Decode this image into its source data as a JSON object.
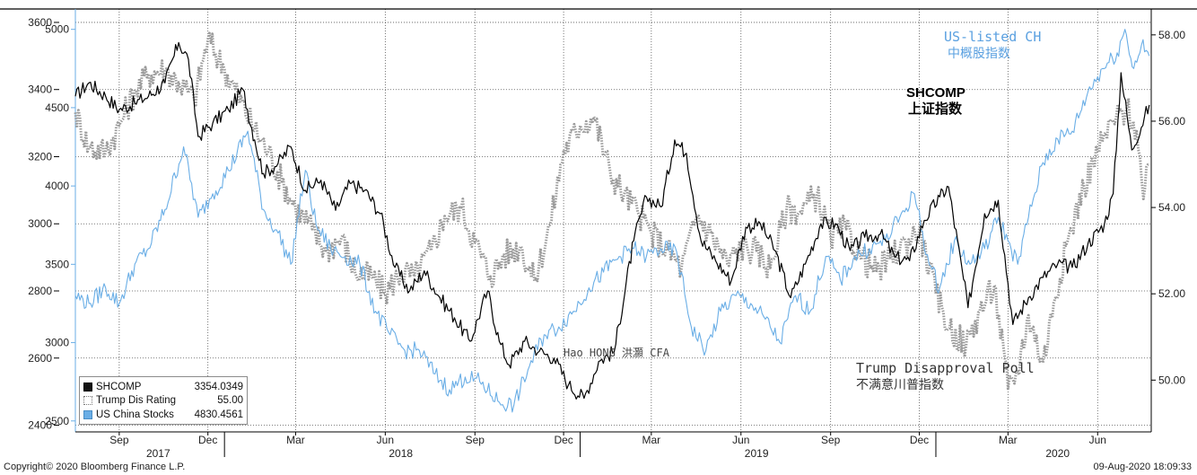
{
  "chart_data": {
    "type": "line",
    "x_axis": {
      "month_ticks": [
        "Sep",
        "Dec",
        "Mar",
        "Jun",
        "Sep",
        "Dec",
        "Mar",
        "Jun",
        "Sep",
        "Dec",
        "Mar",
        "Jun"
      ],
      "years": [
        "2017",
        "2018",
        "2019",
        "2020"
      ],
      "range": [
        "2017-08-01",
        "2020-08-09"
      ]
    },
    "left_axis_outer": {
      "ticks": [
        2400,
        2600,
        2800,
        3000,
        3200,
        3400,
        3600
      ],
      "range": [
        2380,
        3640
      ]
    },
    "left_axis_inner": {
      "ticks": [
        2500,
        3000,
        3500,
        4000,
        4500,
        5000
      ],
      "range": [
        2430,
        5130
      ]
    },
    "right_axis": {
      "ticks": [
        "50.00",
        "52.00",
        "54.00",
        "56.00",
        "58.00"
      ],
      "range": [
        48.8,
        58.6
      ]
    },
    "grid": true,
    "series": [
      {
        "name": "SHCOMP",
        "color": "#000000",
        "style": "solid",
        "last_value": "3354.0349",
        "points": [
          [
            "2017-08-01",
            3380
          ],
          [
            "2017-08-15",
            3420
          ],
          [
            "2017-09-01",
            3380
          ],
          [
            "2017-09-15",
            3340
          ],
          [
            "2017-10-01",
            3360
          ],
          [
            "2017-10-15",
            3380
          ],
          [
            "2017-11-01",
            3420
          ],
          [
            "2017-11-15",
            3540
          ],
          [
            "2017-11-25",
            3490
          ],
          [
            "2017-12-05",
            3260
          ],
          [
            "2017-12-20",
            3300
          ],
          [
            "2018-01-05",
            3340
          ],
          [
            "2018-01-20",
            3400
          ],
          [
            "2018-02-01",
            3250
          ],
          [
            "2018-02-10",
            3150
          ],
          [
            "2018-02-25",
            3180
          ],
          [
            "2018-03-10",
            3230
          ],
          [
            "2018-03-25",
            3100
          ],
          [
            "2018-04-10",
            3130
          ],
          [
            "2018-04-25",
            3040
          ],
          [
            "2018-05-10",
            3120
          ],
          [
            "2018-05-25",
            3100
          ],
          [
            "2018-06-10",
            3030
          ],
          [
            "2018-06-25",
            2870
          ],
          [
            "2018-07-10",
            2800
          ],
          [
            "2018-07-25",
            2860
          ],
          [
            "2018-08-10",
            2780
          ],
          [
            "2018-08-25",
            2720
          ],
          [
            "2018-09-10",
            2650
          ],
          [
            "2018-09-28",
            2800
          ],
          [
            "2018-10-10",
            2650
          ],
          [
            "2018-10-20",
            2580
          ],
          [
            "2018-11-05",
            2650
          ],
          [
            "2018-11-20",
            2620
          ],
          [
            "2018-12-05",
            2600
          ],
          [
            "2018-12-20",
            2520
          ],
          [
            "2019-01-05",
            2480
          ],
          [
            "2019-01-20",
            2590
          ],
          [
            "2019-02-05",
            2620
          ],
          [
            "2019-02-25",
            2950
          ],
          [
            "2019-03-10",
            3080
          ],
          [
            "2019-03-25",
            3050
          ],
          [
            "2019-04-08",
            3250
          ],
          [
            "2019-04-20",
            3210
          ],
          [
            "2019-05-05",
            2950
          ],
          [
            "2019-05-20",
            2890
          ],
          [
            "2019-06-05",
            2830
          ],
          [
            "2019-06-20",
            2990
          ],
          [
            "2019-07-05",
            3000
          ],
          [
            "2019-07-20",
            2920
          ],
          [
            "2019-08-05",
            2780
          ],
          [
            "2019-08-20",
            2880
          ],
          [
            "2019-09-05",
            3000
          ],
          [
            "2019-09-20",
            3000
          ],
          [
            "2019-10-05",
            2920
          ],
          [
            "2019-10-20",
            2960
          ],
          [
            "2019-11-05",
            2970
          ],
          [
            "2019-11-20",
            2900
          ],
          [
            "2019-12-05",
            2890
          ],
          [
            "2019-12-20",
            3010
          ],
          [
            "2020-01-05",
            3080
          ],
          [
            "2020-01-14",
            3110
          ],
          [
            "2020-02-03",
            2750
          ],
          [
            "2020-02-20",
            3030
          ],
          [
            "2020-03-05",
            3070
          ],
          [
            "2020-03-20",
            2700
          ],
          [
            "2020-04-05",
            2780
          ],
          [
            "2020-04-20",
            2840
          ],
          [
            "2020-05-05",
            2880
          ],
          [
            "2020-05-20",
            2870
          ],
          [
            "2020-06-05",
            2940
          ],
          [
            "2020-06-22",
            3000
          ],
          [
            "2020-07-01",
            3090
          ],
          [
            "2020-07-09",
            3450
          ],
          [
            "2020-07-20",
            3220
          ],
          [
            "2020-08-07",
            3354
          ]
        ]
      },
      {
        "name": "Trump Dis Rating",
        "color": "#9a9a9a",
        "style": "dotted",
        "last_value": "55.00",
        "points": [
          [
            "2017-08-01",
            56.2
          ],
          [
            "2017-08-15",
            55.4
          ],
          [
            "2017-09-01",
            55.3
          ],
          [
            "2017-09-15",
            55.9
          ],
          [
            "2017-10-01",
            56.7
          ],
          [
            "2017-10-15",
            57.1
          ],
          [
            "2017-11-01",
            57.2
          ],
          [
            "2017-11-15",
            56.9
          ],
          [
            "2017-12-01",
            56.5
          ],
          [
            "2017-12-15",
            57.9
          ],
          [
            "2018-01-01",
            57.2
          ],
          [
            "2018-01-15",
            56.6
          ],
          [
            "2018-02-01",
            55.8
          ],
          [
            "2018-02-15",
            55.3
          ],
          [
            "2018-03-01",
            54.6
          ],
          [
            "2018-03-15",
            54.0
          ],
          [
            "2018-04-01",
            53.5
          ],
          [
            "2018-04-15",
            53.0
          ],
          [
            "2018-05-01",
            53.3
          ],
          [
            "2018-05-15",
            52.5
          ],
          [
            "2018-06-01",
            52.4
          ],
          [
            "2018-06-15",
            52.0
          ],
          [
            "2018-07-01",
            52.5
          ],
          [
            "2018-07-15",
            52.4
          ],
          [
            "2018-08-01",
            53.0
          ],
          [
            "2018-08-15",
            53.8
          ],
          [
            "2018-09-01",
            54.0
          ],
          [
            "2018-09-15",
            53.2
          ],
          [
            "2018-10-01",
            52.4
          ],
          [
            "2018-10-15",
            52.9
          ],
          [
            "2018-11-01",
            53.1
          ],
          [
            "2018-11-15",
            52.3
          ],
          [
            "2018-12-01",
            53.6
          ],
          [
            "2018-12-15",
            55.3
          ],
          [
            "2019-01-01",
            55.9
          ],
          [
            "2019-01-15",
            56.1
          ],
          [
            "2019-02-01",
            54.8
          ],
          [
            "2019-02-15",
            54.3
          ],
          [
            "2019-03-01",
            53.9
          ],
          [
            "2019-03-15",
            53.4
          ],
          [
            "2019-04-01",
            53.0
          ],
          [
            "2019-04-15",
            52.6
          ],
          [
            "2019-05-01",
            53.8
          ],
          [
            "2019-05-15",
            53.4
          ],
          [
            "2019-06-01",
            52.7
          ],
          [
            "2019-06-15",
            53.1
          ],
          [
            "2019-07-01",
            53.0
          ],
          [
            "2019-07-15",
            52.6
          ],
          [
            "2019-08-01",
            54.0
          ],
          [
            "2019-08-15",
            53.9
          ],
          [
            "2019-09-01",
            54.3
          ],
          [
            "2019-09-15",
            53.3
          ],
          [
            "2019-10-01",
            53.5
          ],
          [
            "2019-10-15",
            52.9
          ],
          [
            "2019-11-01",
            52.5
          ],
          [
            "2019-11-15",
            52.8
          ],
          [
            "2019-12-01",
            53.2
          ],
          [
            "2019-12-15",
            53.5
          ],
          [
            "2020-01-01",
            52.0
          ],
          [
            "2020-01-15",
            51.2
          ],
          [
            "2020-02-01",
            50.8
          ],
          [
            "2020-02-15",
            51.6
          ],
          [
            "2020-03-01",
            52.2
          ],
          [
            "2020-03-15",
            49.8
          ],
          [
            "2020-03-25",
            50.2
          ],
          [
            "2020-04-05",
            51.5
          ],
          [
            "2020-04-20",
            50.4
          ],
          [
            "2020-05-01",
            51.8
          ],
          [
            "2020-05-15",
            53.2
          ],
          [
            "2020-06-01",
            54.5
          ],
          [
            "2020-06-15",
            55.3
          ],
          [
            "2020-07-01",
            56.0
          ],
          [
            "2020-07-15",
            56.3
          ],
          [
            "2020-07-25",
            55.8
          ],
          [
            "2020-08-01",
            54.2
          ],
          [
            "2020-08-07",
            55.0
          ]
        ]
      },
      {
        "name": "US China Stocks",
        "color": "#6aaee6",
        "style": "solid",
        "last_value": "4830.4561",
        "points": [
          [
            "2017-08-01",
            3300
          ],
          [
            "2017-08-15",
            3250
          ],
          [
            "2017-09-01",
            3350
          ],
          [
            "2017-09-15",
            3250
          ],
          [
            "2017-10-01",
            3500
          ],
          [
            "2017-10-15",
            3600
          ],
          [
            "2017-11-01",
            3850
          ],
          [
            "2017-11-20",
            4250
          ],
          [
            "2017-12-05",
            3800
          ],
          [
            "2017-12-20",
            3950
          ],
          [
            "2018-01-05",
            4100
          ],
          [
            "2018-01-25",
            4350
          ],
          [
            "2018-02-10",
            3850
          ],
          [
            "2018-02-25",
            3700
          ],
          [
            "2018-03-10",
            3500
          ],
          [
            "2018-03-25",
            4100
          ],
          [
            "2018-04-05",
            3750
          ],
          [
            "2018-04-20",
            3600
          ],
          [
            "2018-05-05",
            3550
          ],
          [
            "2018-05-20",
            3500
          ],
          [
            "2018-06-05",
            3200
          ],
          [
            "2018-06-20",
            3050
          ],
          [
            "2018-07-05",
            2950
          ],
          [
            "2018-07-20",
            2950
          ],
          [
            "2018-08-05",
            2800
          ],
          [
            "2018-08-20",
            2700
          ],
          [
            "2018-09-05",
            2780
          ],
          [
            "2018-09-20",
            2750
          ],
          [
            "2018-10-10",
            2620
          ],
          [
            "2018-10-25",
            2600
          ],
          [
            "2018-11-10",
            2850
          ],
          [
            "2018-11-25",
            3050
          ],
          [
            "2018-12-10",
            3100
          ],
          [
            "2018-12-25",
            3200
          ],
          [
            "2019-01-10",
            3350
          ],
          [
            "2019-01-25",
            3450
          ],
          [
            "2019-02-10",
            3550
          ],
          [
            "2019-02-25",
            3600
          ],
          [
            "2019-03-10",
            3550
          ],
          [
            "2019-03-25",
            3600
          ],
          [
            "2019-04-10",
            3580
          ],
          [
            "2019-04-25",
            3100
          ],
          [
            "2019-05-10",
            2950
          ],
          [
            "2019-05-25",
            3200
          ],
          [
            "2019-06-10",
            3300
          ],
          [
            "2019-06-25",
            3250
          ],
          [
            "2019-07-10",
            3150
          ],
          [
            "2019-07-25",
            3000
          ],
          [
            "2019-08-10",
            3300
          ],
          [
            "2019-08-25",
            3200
          ],
          [
            "2019-09-10",
            3550
          ],
          [
            "2019-09-25",
            3400
          ],
          [
            "2019-10-10",
            3550
          ],
          [
            "2019-10-25",
            3600
          ],
          [
            "2019-11-10",
            3650
          ],
          [
            "2019-11-25",
            3800
          ],
          [
            "2019-12-10",
            3950
          ],
          [
            "2019-12-25",
            3500
          ],
          [
            "2020-01-05",
            3350
          ],
          [
            "2020-01-20",
            3650
          ],
          [
            "2020-02-05",
            3500
          ],
          [
            "2020-02-20",
            3600
          ],
          [
            "2020-03-05",
            3800
          ],
          [
            "2020-03-15",
            3650
          ],
          [
            "2020-03-25",
            3500
          ],
          [
            "2020-04-05",
            3800
          ],
          [
            "2020-04-20",
            4150
          ],
          [
            "2020-05-05",
            4300
          ],
          [
            "2020-05-20",
            4350
          ],
          [
            "2020-06-05",
            4600
          ],
          [
            "2020-06-20",
            4750
          ],
          [
            "2020-07-05",
            4850
          ],
          [
            "2020-07-13",
            5000
          ],
          [
            "2020-07-22",
            4750
          ],
          [
            "2020-07-30",
            4900
          ],
          [
            "2020-08-07",
            4830
          ]
        ]
      }
    ],
    "annotations": {
      "us_listed": "US-listed CH",
      "us_listed_cn": "中概股指数",
      "shcomp": "SHCOMP",
      "shcomp_cn": "上证指数",
      "author": "Hao HONG 洪灝 CFA",
      "poll": "Trump Disapproval Poll",
      "poll_cn": "不满意川普指数"
    }
  },
  "legend": [
    {
      "name": "SHCOMP",
      "value": "3354.0349",
      "swatch": "#111111",
      "style": "solid"
    },
    {
      "name": "Trump Dis Rating",
      "value": "55.00",
      "swatch": "#ffffff",
      "style": "dotted"
    },
    {
      "name": "US China Stocks",
      "value": "4830.4561",
      "swatch": "#6aaee6",
      "style": "solid"
    }
  ],
  "footer": {
    "copyright": "Copyright© 2020 Bloomberg Finance L.P.",
    "timestamp": "09-Aug-2020 18:09:33"
  }
}
